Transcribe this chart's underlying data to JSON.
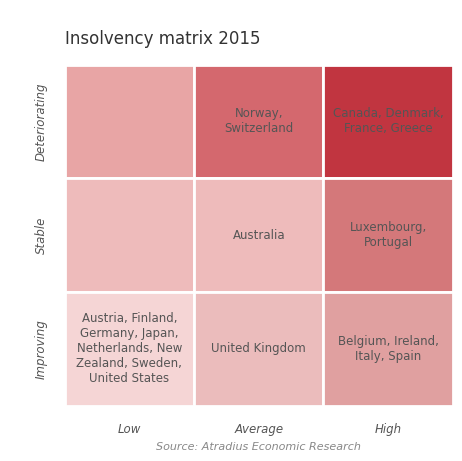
{
  "title": "Insolvency matrix 2015",
  "source": "Source: Atradius Economic Research",
  "x_labels": [
    "Low",
    "Average",
    "High"
  ],
  "y_labels": [
    "Deteriorating",
    "Stable",
    "Improving"
  ],
  "display_colors": [
    [
      "#e8a5a5",
      "#d4686e",
      "#c13540"
    ],
    [
      "#eebbbb",
      "#eebbbb",
      "#d4787a"
    ],
    [
      "#f5d5d5",
      "#ebbcbc",
      "#e0a0a0"
    ]
  ],
  "cell_texts": [
    [
      "",
      "Norway,\nSwitzerland",
      "Canada, Denmark,\nFrance, Greece"
    ],
    [
      "",
      "Australia",
      "Luxembourg,\nPortugal"
    ],
    [
      "Austria, Finland,\nGermany, Japan,\nNetherlands, New\nZealand, Sweden,\nUnited States",
      "United Kingdom",
      "Belgium, Ireland,\nItaly, Spain"
    ]
  ],
  "background_color": "#ffffff",
  "text_color": "#555555",
  "title_fontsize": 12,
  "cell_fontsize": 8.5,
  "axis_label_fontsize": 8.5,
  "source_fontsize": 8
}
